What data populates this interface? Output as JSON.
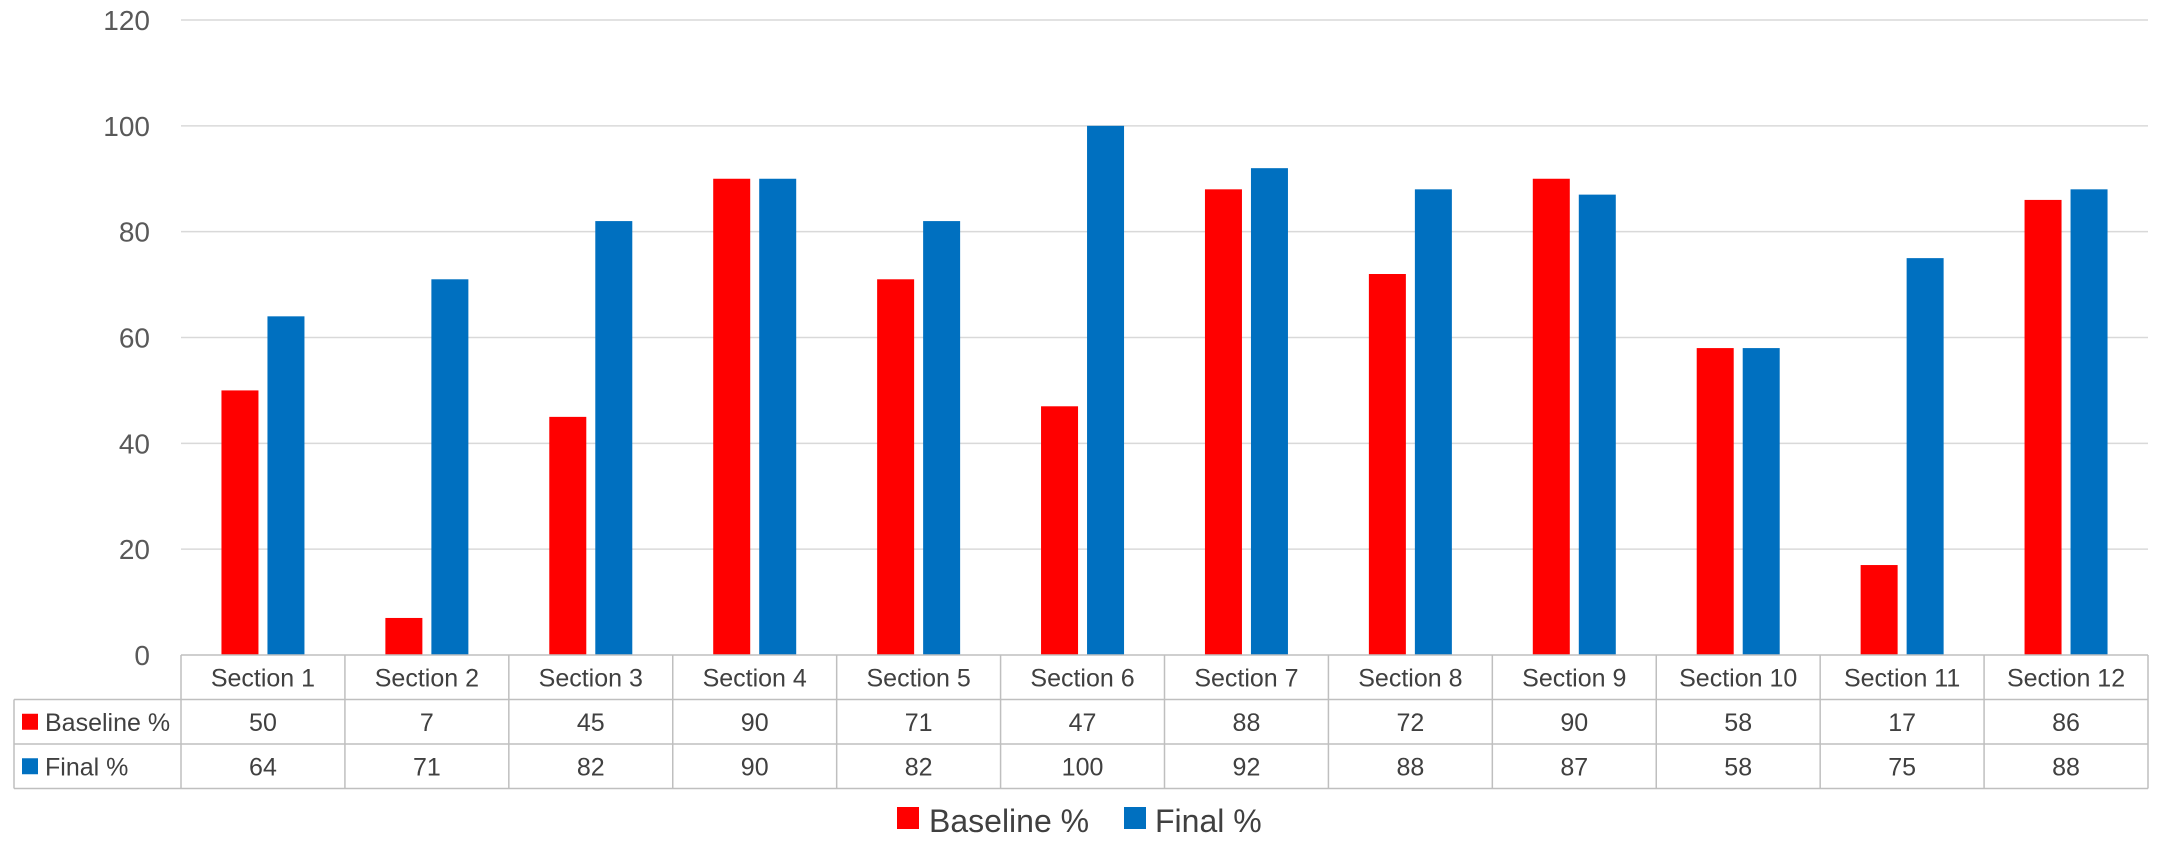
{
  "chart_data": {
    "type": "bar",
    "categories": [
      "Section 1",
      "Section 2",
      "Section 3",
      "Section 4",
      "Section 5",
      "Section 6",
      "Section 7",
      "Section 8",
      "Section 9",
      "Section 10",
      "Section 11",
      "Section 12"
    ],
    "series": [
      {
        "name": "Baseline %",
        "color": "#ff0000",
        "values": [
          50,
          7,
          45,
          90,
          71,
          47,
          88,
          72,
          90,
          58,
          17,
          86
        ]
      },
      {
        "name": "Final %",
        "color": "#0070c0",
        "values": [
          64,
          71,
          82,
          90,
          82,
          100,
          92,
          88,
          87,
          58,
          75,
          88
        ]
      }
    ],
    "title": "",
    "xlabel": "",
    "ylabel": "",
    "ylim": [
      0,
      120
    ],
    "yticks": [
      0,
      20,
      40,
      60,
      80,
      100,
      120
    ],
    "grid": true,
    "data_table": true,
    "legend_position": "bottom"
  }
}
